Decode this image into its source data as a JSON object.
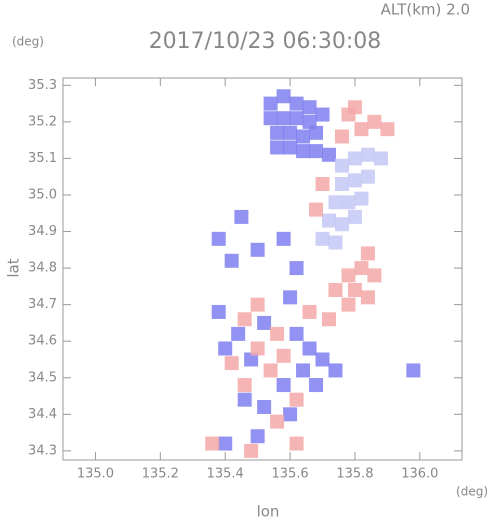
{
  "chart_data": {
    "type": "scatter",
    "title": "2017/10/23 06:30:08",
    "subtitle": "ALT(km)  2.0",
    "y_unit": "(deg)",
    "x_unit": "(deg)",
    "xlabel": "lon",
    "ylabel": "lat",
    "xlim": [
      134.9,
      136.13
    ],
    "ylim": [
      34.275,
      35.32
    ],
    "xticks": [
      {
        "value": 135,
        "label": "135.0"
      },
      135.2,
      135.4,
      135.6,
      135.8,
      {
        "value": 136,
        "label": "136.0"
      }
    ],
    "yticks": [
      34.3,
      34.4,
      34.5,
      34.6,
      34.7,
      34.8,
      34.9,
      {
        "value": 35,
        "label": "35.0"
      },
      35.1,
      35.2,
      35.3
    ],
    "series": [
      {
        "color": "#7f7ff0",
        "x": [
          135.54,
          135.58,
          135.62,
          135.66,
          135.7,
          135.54,
          135.58,
          135.62,
          135.66,
          135.56,
          135.6,
          135.64,
          135.68,
          135.56,
          135.6,
          135.64,
          135.68,
          135.72,
          135.45,
          135.38,
          135.42,
          135.5,
          135.58,
          135.62,
          135.6,
          135.38,
          135.44,
          135.52,
          135.4,
          135.48,
          135.62,
          135.66,
          135.7,
          135.64,
          135.58,
          135.52,
          135.46,
          135.6,
          135.68,
          135.74,
          135.98,
          135.4,
          135.5
        ],
        "y": [
          35.25,
          35.27,
          35.25,
          35.24,
          35.22,
          35.21,
          35.21,
          35.21,
          35.2,
          35.17,
          35.17,
          35.16,
          35.17,
          35.13,
          35.13,
          35.12,
          35.12,
          35.11,
          34.94,
          34.88,
          34.82,
          34.85,
          34.88,
          34.8,
          34.72,
          34.68,
          34.62,
          34.65,
          34.58,
          34.55,
          34.62,
          34.58,
          34.55,
          34.52,
          34.48,
          34.42,
          34.44,
          34.4,
          34.48,
          34.52,
          34.52,
          34.32,
          34.34
        ]
      },
      {
        "color": "#c4c8f4",
        "x": [
          135.76,
          135.8,
          135.84,
          135.88,
          135.76,
          135.8,
          135.84,
          135.74,
          135.78,
          135.82,
          135.72,
          135.76,
          135.8,
          135.7,
          135.74
        ],
        "y": [
          35.08,
          35.1,
          35.11,
          35.1,
          35.03,
          35.04,
          35.05,
          34.98,
          34.98,
          34.99,
          34.93,
          34.92,
          34.94,
          34.88,
          34.87
        ]
      },
      {
        "color": "#f4a8a8",
        "x": [
          135.78,
          135.82,
          135.86,
          135.8,
          135.9,
          135.76,
          135.82,
          135.78,
          135.86,
          135.8,
          135.84,
          135.78,
          135.84,
          135.74,
          135.5,
          135.46,
          135.56,
          135.5,
          135.42,
          135.58,
          135.46,
          135.54,
          135.72,
          135.66,
          135.62,
          135.56,
          135.36,
          135.48,
          135.62,
          135.7,
          135.68
        ],
        "y": [
          35.22,
          35.18,
          35.2,
          35.24,
          35.18,
          35.16,
          34.8,
          34.78,
          34.78,
          34.74,
          34.72,
          34.7,
          34.84,
          34.74,
          34.7,
          34.66,
          34.62,
          34.58,
          34.54,
          34.56,
          34.48,
          34.52,
          34.66,
          34.68,
          34.44,
          34.38,
          34.32,
          34.3,
          34.32,
          35.03,
          34.96
        ]
      }
    ]
  }
}
